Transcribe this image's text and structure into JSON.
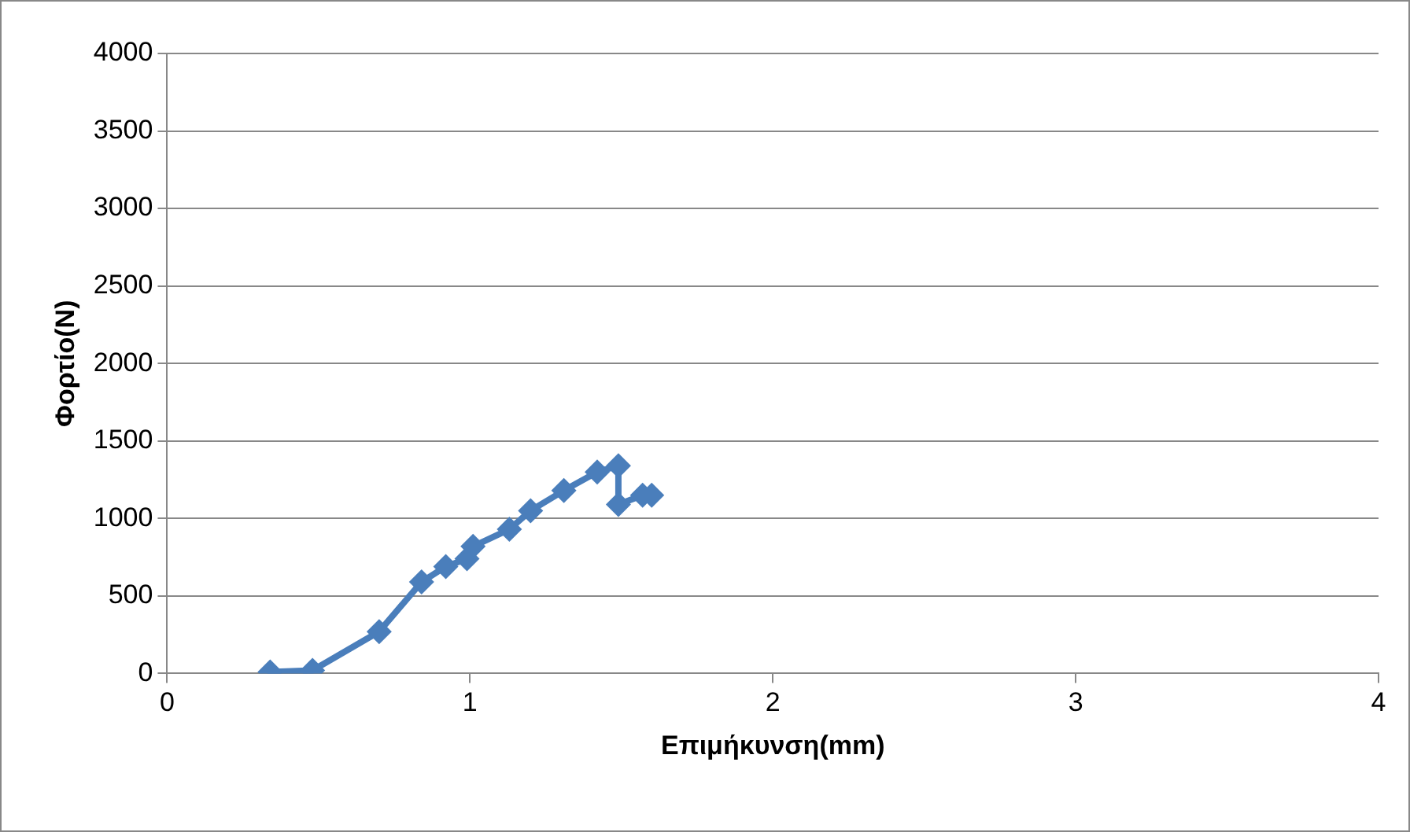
{
  "chart_data": {
    "type": "line",
    "xlabel": "Επιμήκυνση(mm)",
    "ylabel": "Φορτίο(N)",
    "x": [
      0.34,
      0.48,
      0.7,
      0.84,
      0.92,
      0.99,
      1.01,
      1.13,
      1.2,
      1.31,
      1.42,
      1.49,
      1.49,
      1.57,
      1.6
    ],
    "series": [
      {
        "color": "#4a7ebb",
        "values": [
          10,
          20,
          270,
          590,
          690,
          740,
          820,
          930,
          1050,
          1180,
          1300,
          1340,
          1090,
          1150,
          1150
        ]
      }
    ],
    "xlim": [
      0,
      4
    ],
    "xticks": [
      0,
      1,
      2,
      3,
      4
    ],
    "ylim": [
      0,
      4000
    ],
    "yticks": [
      0,
      500,
      1000,
      1500,
      2000,
      2500,
      3000,
      3500,
      4000
    ],
    "grid": "y",
    "legend": false,
    "marker": "diamond",
    "line_style": "solid"
  }
}
